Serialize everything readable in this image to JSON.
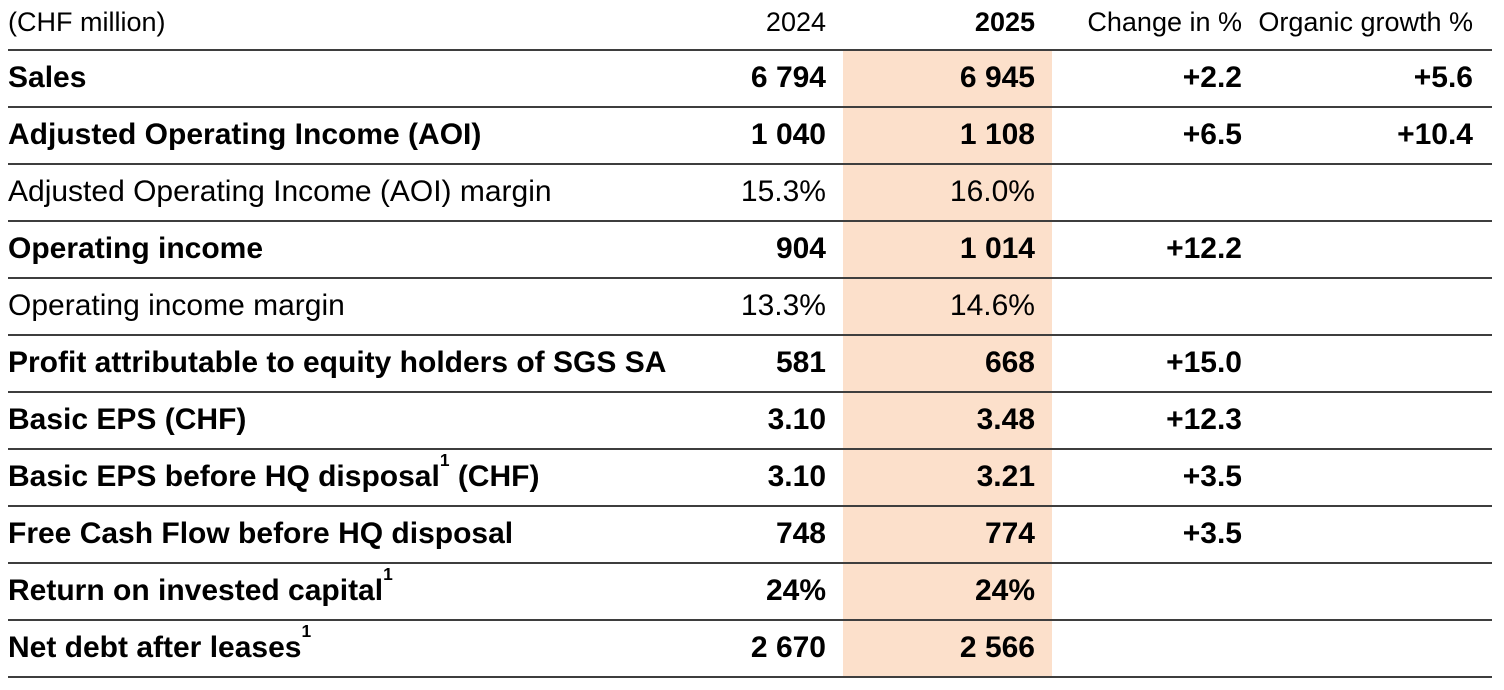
{
  "table": {
    "highlight_color": "#fce0cb",
    "rule_color": "#3e3e3e",
    "columns": {
      "label": "(CHF million)",
      "y2024": "2024",
      "y2025": "2025",
      "change": "Change in %",
      "organic": "Organic growth %"
    },
    "rows": [
      {
        "label": "Sales",
        "sup": "",
        "suffix": "",
        "y2024": "6 794",
        "y2025": "6 945",
        "change": "+2.2",
        "organic": "+5.6",
        "bold": true
      },
      {
        "label": "Adjusted Operating Income (AOI)",
        "sup": "",
        "suffix": "",
        "y2024": "1 040",
        "y2025": "1 108",
        "change": "+6.5",
        "organic": "+10.4",
        "bold": true
      },
      {
        "label": "Adjusted Operating Income (AOI) margin",
        "sup": "",
        "suffix": "",
        "y2024": "15.3%",
        "y2025": "16.0%",
        "change": "",
        "organic": "",
        "bold": false
      },
      {
        "label": "Operating income",
        "sup": "",
        "suffix": "",
        "y2024": "904",
        "y2025": "1 014",
        "change": "+12.2",
        "organic": "",
        "bold": true
      },
      {
        "label": "Operating income margin",
        "sup": "",
        "suffix": "",
        "y2024": "13.3%",
        "y2025": "14.6%",
        "change": "",
        "organic": "",
        "bold": false
      },
      {
        "label": "Profit attributable to equity holders of SGS SA",
        "sup": "",
        "suffix": "",
        "y2024": "581",
        "y2025": "668",
        "change": "+15.0",
        "organic": "",
        "bold": true
      },
      {
        "label": "Basic EPS (CHF)",
        "sup": "",
        "suffix": "",
        "y2024": "3.10",
        "y2025": "3.48",
        "change": "+12.3",
        "organic": "",
        "bold": true
      },
      {
        "label": "Basic EPS before HQ disposal",
        "sup": "1",
        "suffix": " (CHF)",
        "y2024": "3.10",
        "y2025": "3.21",
        "change": "+3.5",
        "organic": "",
        "bold": true
      },
      {
        "label": "Free Cash Flow before HQ disposal",
        "sup": "",
        "suffix": "",
        "y2024": "748",
        "y2025": "774",
        "change": "+3.5",
        "organic": "",
        "bold": true
      },
      {
        "label": "Return on invested capital",
        "sup": "1",
        "suffix": "",
        "y2024": "24%",
        "y2025": "24%",
        "change": "",
        "organic": "",
        "bold": true
      },
      {
        "label": "Net debt after leases",
        "sup": "1",
        "suffix": "",
        "y2024": "2 670",
        "y2025": "2 566",
        "change": "",
        "organic": "",
        "bold": true
      }
    ]
  }
}
